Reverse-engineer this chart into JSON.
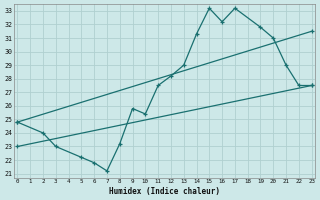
{
  "bg_color": "#cde8e8",
  "grid_color": "#b0d0d0",
  "line_color": "#1a7070",
  "xlabel": "Humidex (Indice chaleur)",
  "xlim": [
    -0.3,
    23.3
  ],
  "ylim": [
    20.7,
    33.5
  ],
  "xticks": [
    0,
    1,
    2,
    3,
    4,
    5,
    6,
    7,
    8,
    9,
    10,
    11,
    12,
    13,
    14,
    15,
    16,
    17,
    18,
    19,
    20,
    21,
    22,
    23
  ],
  "yticks": [
    21,
    22,
    23,
    24,
    25,
    26,
    27,
    28,
    29,
    30,
    31,
    32,
    33
  ],
  "zigzag": {
    "x": [
      0,
      2,
      3,
      5,
      6,
      7,
      8,
      9,
      10,
      11,
      12,
      13,
      14,
      15,
      16,
      17,
      19,
      20,
      21,
      22,
      23
    ],
    "y": [
      24.8,
      24.0,
      23.0,
      22.2,
      21.8,
      21.2,
      23.2,
      25.8,
      25.4,
      27.5,
      28.2,
      29.0,
      31.3,
      33.2,
      32.2,
      33.2,
      31.8,
      31.0,
      29.0,
      27.5,
      27.5
    ]
  },
  "upper_diag": {
    "x": [
      0,
      23
    ],
    "y": [
      24.8,
      31.5
    ]
  },
  "lower_diag": {
    "x": [
      0,
      23
    ],
    "y": [
      23.0,
      27.5
    ]
  }
}
